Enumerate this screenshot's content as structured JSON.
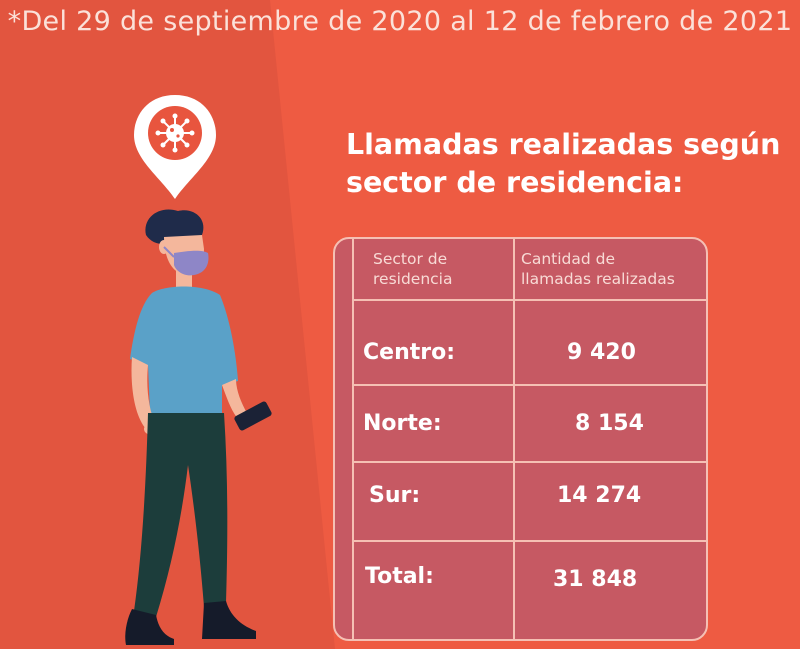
{
  "header": {
    "date_range": "*Del 29 de septiembre de 2020 al 12 de febrero de 2021"
  },
  "title": {
    "line1": "Llamadas realizadas según",
    "line2": "sector de residencia:"
  },
  "table": {
    "col1_line1": "Sector de",
    "col1_line2": "residencia",
    "col2_line1": "Cantidad de",
    "col2_line2": "llamadas realizadas",
    "rows": [
      {
        "label": "Centro:",
        "value": "9 420"
      },
      {
        "label": "Norte:",
        "value": "8 154"
      },
      {
        "label": "Sur:",
        "value": "14 274"
      },
      {
        "label": "Total:",
        "value": "31 848"
      }
    ]
  },
  "colors": {
    "background": "#e2553f",
    "panel": "#ee5b42",
    "table_fill": "#c65963",
    "table_border": "#f5c0b4",
    "virus": "#e8553e"
  },
  "icons": [
    "location-pin-icon",
    "virus-icon"
  ]
}
